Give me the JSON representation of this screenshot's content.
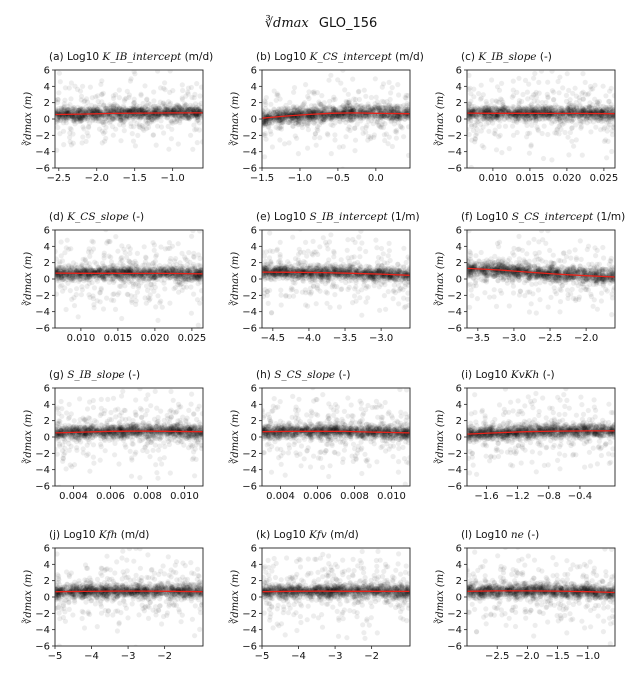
{
  "figure": {
    "title_math": "∛dmax",
    "title_id": "GLO_156"
  },
  "chart_data": [
    {
      "type": "scatter",
      "subtitle": {
        "prefix": "(a) Log10 ",
        "var": "K_IB_intercept",
        "suffix": " (m/d)"
      },
      "ylabel": "∛dmax (m)",
      "xlim": [
        -2.55,
        -0.6
      ],
      "xticks": [
        -2.5,
        -2.0,
        -1.5,
        -1.0
      ],
      "xticklabels": [
        "−2.5",
        "−2.0",
        "−1.5",
        "−1.0"
      ],
      "ylim": [
        -6,
        6
      ],
      "yticks": [
        -6,
        -4,
        -2,
        0,
        2,
        4,
        6
      ],
      "yticklabels": [
        "−6",
        "−4",
        "−2",
        "0",
        "2",
        "4",
        "6"
      ],
      "scatter_center": 0.7,
      "scatter_spread": 0.9,
      "trend": {
        "x": [
          -2.55,
          -2.2,
          -1.8,
          -1.4,
          -1.0,
          -0.6
        ],
        "y": [
          0.55,
          0.6,
          0.68,
          0.72,
          0.75,
          0.75
        ]
      }
    },
    {
      "type": "scatter",
      "subtitle": {
        "prefix": "(b) Log10 ",
        "var": "K_CS_intercept",
        "suffix": " (m/d)"
      },
      "ylabel": "∛dmax (m)",
      "xlim": [
        -1.5,
        0.45
      ],
      "xticks": [
        -1.5,
        -1.0,
        -0.5,
        0.0
      ],
      "xticklabels": [
        "−1.5",
        "−1.0",
        "−0.5",
        "0.0"
      ],
      "ylim": [
        -6,
        6
      ],
      "yticks": [
        -6,
        -4,
        -2,
        0,
        2,
        4,
        6
      ],
      "yticklabels": [
        "−6",
        "−4",
        "−2",
        "0",
        "2",
        "4",
        "6"
      ],
      "scatter_center": 0.6,
      "scatter_spread": 1.0,
      "trend": {
        "x": [
          -1.5,
          -1.2,
          -0.9,
          -0.6,
          -0.3,
          0.0,
          0.45
        ],
        "y": [
          0.1,
          0.35,
          0.55,
          0.7,
          0.75,
          0.7,
          0.65
        ]
      }
    },
    {
      "type": "scatter",
      "subtitle": {
        "prefix": "(c) ",
        "var": "K_IB_slope",
        "suffix": " (-)"
      },
      "ylabel": "∛dmax (m)",
      "xlim": [
        0.0065,
        0.0265
      ],
      "xticks": [
        0.01,
        0.015,
        0.02,
        0.025
      ],
      "xticklabels": [
        "0.010",
        "0.015",
        "0.020",
        "0.025"
      ],
      "ylim": [
        -6,
        6
      ],
      "yticks": [
        -6,
        -4,
        -2,
        0,
        2,
        4,
        6
      ],
      "yticklabels": [
        "−6",
        "−4",
        "−2",
        "0",
        "2",
        "4",
        "6"
      ],
      "scatter_center": 0.7,
      "scatter_spread": 0.9,
      "trend": {
        "x": [
          0.0065,
          0.01,
          0.014,
          0.018,
          0.022,
          0.0265
        ],
        "y": [
          0.72,
          0.7,
          0.7,
          0.68,
          0.68,
          0.65
        ]
      }
    },
    {
      "type": "scatter",
      "subtitle": {
        "prefix": "(d) ",
        "var": "K_CS_slope",
        "suffix": " (-)"
      },
      "ylabel": "∛dmax (m)",
      "xlim": [
        0.0065,
        0.0265
      ],
      "xticks": [
        0.01,
        0.015,
        0.02,
        0.025
      ],
      "xticklabels": [
        "0.010",
        "0.015",
        "0.020",
        "0.025"
      ],
      "ylim": [
        -6,
        6
      ],
      "yticks": [
        -6,
        -4,
        -2,
        0,
        2,
        4,
        6
      ],
      "yticklabels": [
        "−6",
        "−4",
        "−2",
        "0",
        "2",
        "4",
        "6"
      ],
      "scatter_center": 0.7,
      "scatter_spread": 0.9,
      "trend": {
        "x": [
          0.0065,
          0.01,
          0.014,
          0.018,
          0.022,
          0.0265
        ],
        "y": [
          0.72,
          0.7,
          0.7,
          0.68,
          0.68,
          0.62
        ]
      }
    },
    {
      "type": "scatter",
      "subtitle": {
        "prefix": "(e) Log10 ",
        "var": "S_IB_intercept",
        "suffix": " (1/m)"
      },
      "ylabel": "∛dmax (m)",
      "xlim": [
        -4.65,
        -2.6
      ],
      "xticks": [
        -4.5,
        -4.0,
        -3.5,
        -3.0
      ],
      "xticklabels": [
        "−4.5",
        "−4.0",
        "−3.5",
        "−3.0"
      ],
      "ylim": [
        -6,
        6
      ],
      "yticks": [
        -6,
        -4,
        -2,
        0,
        2,
        4,
        6
      ],
      "yticklabels": [
        "−6",
        "−4",
        "−2",
        "0",
        "2",
        "4",
        "6"
      ],
      "scatter_center": 0.7,
      "scatter_spread": 0.9,
      "trend": {
        "x": [
          -4.65,
          -4.2,
          -3.8,
          -3.4,
          -3.0,
          -2.6
        ],
        "y": [
          0.85,
          0.82,
          0.78,
          0.7,
          0.6,
          0.45
        ]
      }
    },
    {
      "type": "scatter",
      "subtitle": {
        "prefix": "(f) Log10 ",
        "var": "S_CS_intercept",
        "suffix": " (1/m)"
      },
      "ylabel": "∛dmax (m)",
      "xlim": [
        -3.65,
        -1.6
      ],
      "xticks": [
        -3.5,
        -3.0,
        -2.5,
        -2.0
      ],
      "xticklabels": [
        "−3.5",
        "−3.0",
        "−2.5",
        "−2.0"
      ],
      "ylim": [
        -6,
        6
      ],
      "yticks": [
        -6,
        -4,
        -2,
        0,
        2,
        4,
        6
      ],
      "yticklabels": [
        "−6",
        "−4",
        "−2",
        "0",
        "2",
        "4",
        "6"
      ],
      "scatter_center": 0.7,
      "scatter_spread": 1.0,
      "trend": {
        "x": [
          -3.65,
          -3.2,
          -2.8,
          -2.4,
          -2.0,
          -1.6
        ],
        "y": [
          1.3,
          1.1,
          0.85,
          0.6,
          0.4,
          0.25
        ]
      }
    },
    {
      "type": "scatter",
      "subtitle": {
        "prefix": "(g) ",
        "var": "S_IB_slope",
        "suffix": " (-)"
      },
      "ylabel": "∛dmax (m)",
      "xlim": [
        0.003,
        0.011
      ],
      "xticks": [
        0.004,
        0.006,
        0.008,
        0.01
      ],
      "xticklabels": [
        "0.004",
        "0.006",
        "0.008",
        "0.010"
      ],
      "ylim": [
        -6,
        6
      ],
      "yticks": [
        -6,
        -4,
        -2,
        0,
        2,
        4,
        6
      ],
      "yticklabels": [
        "−6",
        "−4",
        "−2",
        "0",
        "2",
        "4",
        "6"
      ],
      "scatter_center": 0.65,
      "scatter_spread": 0.9,
      "trend": {
        "x": [
          0.003,
          0.0045,
          0.006,
          0.0075,
          0.009,
          0.011
        ],
        "y": [
          0.5,
          0.6,
          0.7,
          0.72,
          0.7,
          0.65
        ]
      }
    },
    {
      "type": "scatter",
      "subtitle": {
        "prefix": "(h) ",
        "var": "S_CS_slope",
        "suffix": " (-)"
      },
      "ylabel": "∛dmax (m)",
      "xlim": [
        0.003,
        0.011
      ],
      "xticks": [
        0.004,
        0.006,
        0.008,
        0.01
      ],
      "xticklabels": [
        "0.004",
        "0.006",
        "0.008",
        "0.010"
      ],
      "ylim": [
        -6,
        6
      ],
      "yticks": [
        -6,
        -4,
        -2,
        0,
        2,
        4,
        6
      ],
      "yticklabels": [
        "−6",
        "−4",
        "−2",
        "0",
        "2",
        "4",
        "6"
      ],
      "scatter_center": 0.65,
      "scatter_spread": 0.9,
      "trend": {
        "x": [
          0.003,
          0.0045,
          0.006,
          0.0075,
          0.009,
          0.011
        ],
        "y": [
          0.65,
          0.68,
          0.7,
          0.68,
          0.6,
          0.5
        ]
      }
    },
    {
      "type": "scatter",
      "subtitle": {
        "prefix": "(i) Log10 ",
        "var": "KvKh",
        "suffix": " (-)"
      },
      "ylabel": "∛dmax (m)",
      "xlim": [
        -1.85,
        0.05
      ],
      "xticks": [
        -1.6,
        -1.2,
        -0.8,
        -0.4
      ],
      "xticklabels": [
        "−1.6",
        "−1.2",
        "−0.8",
        "−0.4"
      ],
      "ylim": [
        -6,
        6
      ],
      "yticks": [
        -6,
        -4,
        -2,
        0,
        2,
        4,
        6
      ],
      "yticklabels": [
        "−6",
        "−4",
        "−2",
        "0",
        "2",
        "4",
        "6"
      ],
      "scatter_center": 0.65,
      "scatter_spread": 0.9,
      "trend": {
        "x": [
          -1.85,
          -1.5,
          -1.1,
          -0.7,
          -0.3,
          0.05
        ],
        "y": [
          0.35,
          0.5,
          0.65,
          0.72,
          0.75,
          0.75
        ]
      }
    },
    {
      "type": "scatter",
      "subtitle": {
        "prefix": "(j) Log10 ",
        "var": "Kfh",
        "suffix": " (m/d)"
      },
      "ylabel": "∛dmax (m)",
      "xlim": [
        -5,
        -0.95
      ],
      "xticks": [
        -5,
        -4,
        -3,
        -2
      ],
      "xticklabels": [
        "−5",
        "−4",
        "−3",
        "−2"
      ],
      "ylim": [
        -6,
        6
      ],
      "yticks": [
        -6,
        -4,
        -2,
        0,
        2,
        4,
        6
      ],
      "yticklabels": [
        "−6",
        "−4",
        "−2",
        "0",
        "2",
        "4",
        "6"
      ],
      "scatter_center": 0.7,
      "scatter_spread": 0.9,
      "trend": {
        "x": [
          -5,
          -4.2,
          -3.4,
          -2.6,
          -1.8,
          -0.95
        ],
        "y": [
          0.65,
          0.68,
          0.72,
          0.72,
          0.7,
          0.65
        ]
      }
    },
    {
      "type": "scatter",
      "subtitle": {
        "prefix": "(k) Log10 ",
        "var": "Kfv",
        "suffix": " (m/d)"
      },
      "ylabel": "∛dmax (m)",
      "xlim": [
        -5,
        -0.95
      ],
      "xticks": [
        -5,
        -4,
        -3,
        -2
      ],
      "xticklabels": [
        "−5",
        "−4",
        "−3",
        "−2"
      ],
      "ylim": [
        -6,
        6
      ],
      "yticks": [
        -6,
        -4,
        -2,
        0,
        2,
        4,
        6
      ],
      "yticklabels": [
        "−6",
        "−4",
        "−2",
        "0",
        "2",
        "4",
        "6"
      ],
      "scatter_center": 0.7,
      "scatter_spread": 0.9,
      "trend": {
        "x": [
          -5,
          -4.2,
          -3.4,
          -2.6,
          -1.8,
          -0.95
        ],
        "y": [
          0.65,
          0.7,
          0.72,
          0.7,
          0.7,
          0.68
        ]
      }
    },
    {
      "type": "scatter",
      "subtitle": {
        "prefix": "(l) Log10 ",
        "var": "ne",
        "suffix": " (-)"
      },
      "ylabel": "∛dmax (m)",
      "xlim": [
        -3.0,
        -0.55
      ],
      "xticks": [
        -2.5,
        -2.0,
        -1.5,
        -1.0
      ],
      "xticklabels": [
        "−2.5",
        "−2.0",
        "−1.5",
        "−1.0"
      ],
      "ylim": [
        -6,
        6
      ],
      "yticks": [
        -6,
        -4,
        -2,
        0,
        2,
        4,
        6
      ],
      "yticklabels": [
        "−6",
        "−4",
        "−2",
        "0",
        "2",
        "4",
        "6"
      ],
      "scatter_center": 0.7,
      "scatter_spread": 0.9,
      "trend": {
        "x": [
          -3.0,
          -2.5,
          -2.0,
          -1.5,
          -1.0,
          -0.55
        ],
        "y": [
          0.7,
          0.75,
          0.75,
          0.72,
          0.65,
          0.55
        ]
      }
    }
  ]
}
